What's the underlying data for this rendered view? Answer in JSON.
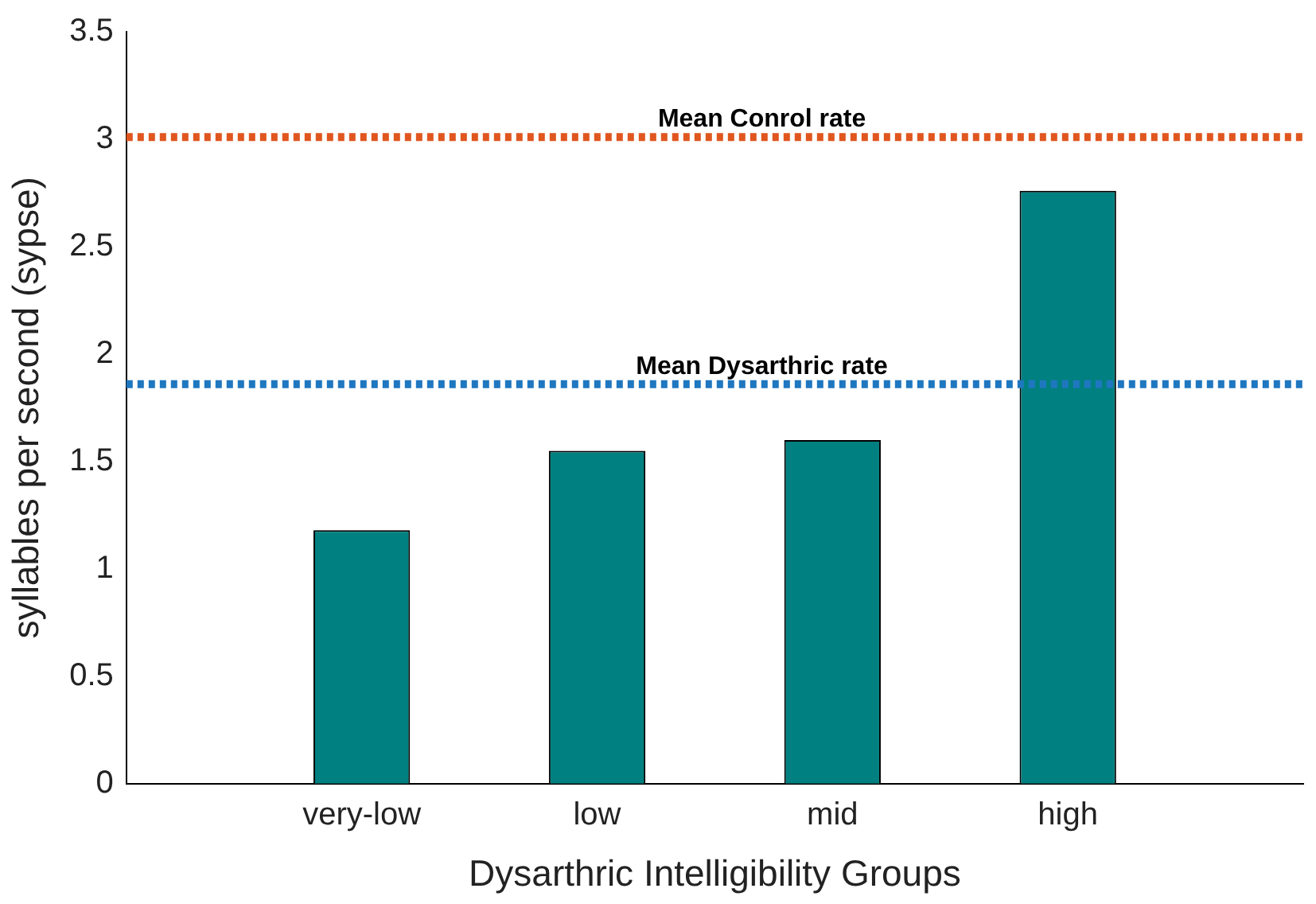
{
  "chart_data": {
    "type": "bar",
    "xlabel": "Dysarthric Intelligibility Groups",
    "ylabel": "syllables per second (sypse)",
    "categories": [
      null,
      "very-low",
      "low",
      "mid",
      "high",
      null
    ],
    "values": [
      null,
      1.18,
      1.55,
      1.6,
      2.76,
      null
    ],
    "color": "#008080",
    "ylim": [
      0,
      3.5
    ],
    "yticks": [
      0,
      0.5,
      1,
      1.5,
      2,
      2.5,
      3,
      3.5
    ],
    "ref_lines": [
      {
        "axis": "y",
        "value": 3.01,
        "label": "Mean Conrol rate",
        "color": "#e0561f",
        "line_style": "dotted"
      },
      {
        "axis": "y",
        "value": 1.86,
        "label": "Mean Dysarthric rate",
        "color": "#1f77c0",
        "line_style": "dotted"
      }
    ],
    "grid": false,
    "legend": false
  }
}
